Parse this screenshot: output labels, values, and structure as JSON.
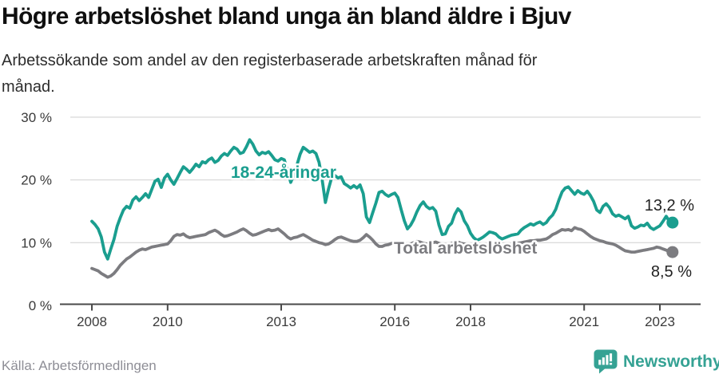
{
  "header": {
    "title": "Högre arbetslöshet bland unga än bland äldre i Bjuv",
    "subtitle_line1": "Arbetssökande som andel av den registerbaserade arbetskraften månad för",
    "subtitle_line2": "månad."
  },
  "footer": {
    "source": "Källa: Arbetsförmedlingen",
    "brand": "Newsworthy"
  },
  "colors": {
    "accent_teal": "#1A9E8F",
    "series_gray": "#7C7C80",
    "grid": "#DCDCDC",
    "axis": "#4A4A4A",
    "tick_text": "#3A3A3A",
    "end_label_text": "#222222",
    "brand_teal": "#35A294"
  },
  "chart_data": {
    "type": "line",
    "title": "Högre arbetslöshet bland unga än bland äldre i Bjuv",
    "subtitle": "Arbetssökande som andel av den registerbaserade arbetskraften månad för månad.",
    "xlabel": "",
    "ylabel": "",
    "x_unit": "decimal_year_monthly",
    "x_start": 2008,
    "x_step_months": 1,
    "xlim": [
      2007.6,
      2023.95
    ],
    "ylim": [
      0,
      30
    ],
    "grid": "horizontal",
    "x_ticks": [
      2008,
      2010,
      2013,
      2016,
      2018,
      2021,
      2023
    ],
    "x_tick_labels": [
      "2008",
      "2010",
      "2013",
      "2016",
      "2018",
      "2021",
      "2023"
    ],
    "y_ticks": [
      0,
      10,
      20,
      30
    ],
    "y_tick_labels": [
      "0 %",
      "10 %",
      "20 %",
      "30 %"
    ],
    "legend_position": "inline-labels",
    "series": [
      {
        "name": "18-24-åringar",
        "color": "#1A9E8F",
        "end_label": "13,2 %",
        "end_value": 13.2,
        "values": [
          13.4,
          12.9,
          12.2,
          10.9,
          8.5,
          7.4,
          9.0,
          10.5,
          12.6,
          14.0,
          15.2,
          15.8,
          15.5,
          16.8,
          17.3,
          16.7,
          17.2,
          17.8,
          17.2,
          18.5,
          19.8,
          20.1,
          18.8,
          20.3,
          20.9,
          20.0,
          19.3,
          20.2,
          21.2,
          22.1,
          21.7,
          21.2,
          21.8,
          22.5,
          22.1,
          22.9,
          22.7,
          23.2,
          23.5,
          22.8,
          23.1,
          23.8,
          24.2,
          23.9,
          24.6,
          25.2,
          24.9,
          24.2,
          24.4,
          25.3,
          26.4,
          25.7,
          24.6,
          24.0,
          24.4,
          24.2,
          24.5,
          23.9,
          23.2,
          23.0,
          23.4,
          23.2,
          21.5,
          19.6,
          20.8,
          22.4,
          24.1,
          25.2,
          24.8,
          24.4,
          24.6,
          24.2,
          22.8,
          20.0,
          16.4,
          18.6,
          20.4,
          20.7,
          20.3,
          20.5,
          19.4,
          19.1,
          18.7,
          19.1,
          18.7,
          19.2,
          17.8,
          14.1,
          13.2,
          14.8,
          16.3,
          18.0,
          18.2,
          17.7,
          17.4,
          17.7,
          17.9,
          17.2,
          15.3,
          13.5,
          12.2,
          12.8,
          13.7,
          14.9,
          15.9,
          16.5,
          15.8,
          15.4,
          15.6,
          15.0,
          12.8,
          11.3,
          11.4,
          12.6,
          13.1,
          14.5,
          15.4,
          14.9,
          13.5,
          12.7,
          11.5,
          10.8,
          10.4,
          10.6,
          10.9,
          11.3,
          11.7,
          11.6,
          11.4,
          10.9,
          10.6,
          10.8,
          11.0,
          11.2,
          11.3,
          11.4,
          12.0,
          12.4,
          12.7,
          13.0,
          12.8,
          13.1,
          13.3,
          12.9,
          13.2,
          13.9,
          14.4,
          15.3,
          16.8,
          18.1,
          18.7,
          18.9,
          18.3,
          17.7,
          18.3,
          17.9,
          17.7,
          18.2,
          17.5,
          16.6,
          15.2,
          14.8,
          15.8,
          16.2,
          15.6,
          14.6,
          14.2,
          14.4,
          14.1,
          13.8,
          14.2,
          12.7,
          12.3,
          12.5,
          12.8,
          12.7,
          13.1,
          12.4,
          12.1,
          12.4,
          12.7,
          13.4,
          14.2,
          13.4,
          13.2
        ]
      },
      {
        "name": "Total arbetslöshet",
        "color": "#7C7C80",
        "end_label": "8,5 %",
        "end_value": 8.5,
        "values": [
          5.9,
          5.7,
          5.5,
          5.1,
          4.8,
          4.5,
          4.7,
          5.1,
          5.7,
          6.4,
          6.9,
          7.4,
          7.7,
          8.1,
          8.5,
          8.8,
          9.0,
          8.9,
          9.1,
          9.3,
          9.4,
          9.5,
          9.6,
          9.7,
          9.8,
          10.3,
          11.0,
          11.3,
          11.2,
          11.4,
          11.0,
          10.8,
          10.9,
          11.0,
          11.1,
          11.2,
          11.3,
          11.6,
          11.8,
          12.0,
          11.7,
          11.3,
          11.0,
          11.1,
          11.3,
          11.5,
          11.7,
          12.0,
          12.2,
          11.9,
          11.5,
          11.2,
          11.3,
          11.5,
          11.7,
          11.9,
          12.1,
          11.9,
          12.0,
          12.2,
          11.8,
          11.4,
          10.9,
          10.6,
          10.8,
          10.9,
          11.1,
          11.3,
          11.0,
          10.7,
          10.4,
          10.2,
          10.0,
          9.9,
          9.7,
          9.8,
          10.1,
          10.5,
          10.8,
          10.9,
          10.7,
          10.5,
          10.3,
          10.2,
          10.2,
          10.4,
          10.8,
          11.3,
          10.9,
          10.4,
          9.8,
          9.4,
          9.4,
          9.6,
          9.7,
          9.9,
          10.0,
          10.1,
          10.0,
          9.8,
          9.7,
          9.8,
          10.0,
          10.2,
          10.1,
          9.9,
          9.8,
          9.9,
          10.0,
          10.1,
          9.9,
          9.7,
          9.6,
          9.7,
          9.9,
          10.0,
          10.1,
          9.9,
          9.8,
          9.7,
          9.6,
          9.5,
          9.4,
          9.3,
          9.4,
          9.5,
          9.6,
          9.7,
          9.6,
          9.5,
          9.4,
          9.5,
          9.6,
          9.7,
          9.8,
          9.9,
          10.0,
          10.1,
          10.2,
          10.3,
          10.3,
          10.4,
          10.4,
          10.5,
          10.6,
          10.9,
          11.3,
          11.5,
          11.8,
          12.1,
          12.0,
          12.1,
          11.9,
          12.4,
          12.2,
          12.1,
          11.8,
          11.4,
          11.0,
          10.7,
          10.5,
          10.3,
          10.2,
          10.0,
          9.9,
          9.8,
          9.6,
          9.3,
          9.0,
          8.7,
          8.6,
          8.5,
          8.5,
          8.6,
          8.7,
          8.8,
          8.9,
          9.0,
          9.1,
          9.3,
          9.2,
          9.0,
          8.8,
          8.6,
          8.5
        ]
      }
    ]
  }
}
